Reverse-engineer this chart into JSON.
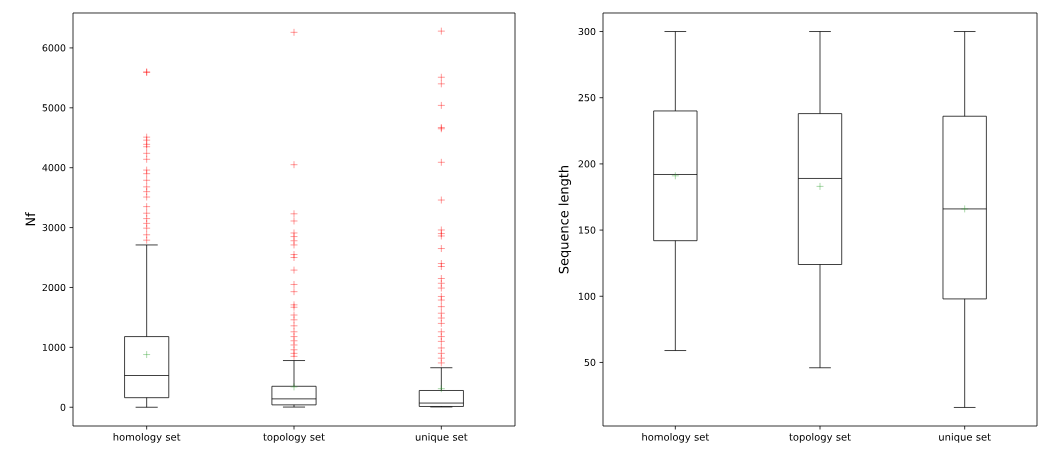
{
  "chart_data": [
    {
      "type": "box",
      "ylabel": "Nf",
      "categories": [
        "homology set",
        "topology set",
        "unique set"
      ],
      "ylim": [
        -313,
        6583
      ],
      "yticks": [
        0,
        1000,
        2000,
        3000,
        4000,
        5000,
        6000
      ],
      "marker": "cross",
      "boxes": [
        {
          "low": 0,
          "q1": 160,
          "median": 530,
          "q3": 1180,
          "high": 2710,
          "mean": 880,
          "outliers": [
            5600,
            5590,
            4510,
            4460,
            4390,
            4350,
            4240,
            4140,
            3960,
            3900,
            3790,
            3680,
            3600,
            3510,
            3350,
            3240,
            3150,
            3070,
            2990,
            2880,
            2790
          ]
        },
        {
          "low": 3,
          "q1": 40,
          "median": 140,
          "q3": 350,
          "high": 780,
          "mean": 340,
          "outliers": [
            6260,
            4050,
            3230,
            3110,
            2910,
            2850,
            2780,
            2710,
            2550,
            2500,
            2290,
            2050,
            1930,
            1710,
            1670,
            1540,
            1460,
            1360,
            1260,
            1180,
            1110,
            1040,
            960,
            900,
            850
          ]
        },
        {
          "low": 5,
          "q1": 13,
          "median": 70,
          "q3": 280,
          "high": 660,
          "mean": 310,
          "outliers": [
            6280,
            5510,
            5400,
            5040,
            4670,
            4650,
            4090,
            3460,
            2960,
            2900,
            2860,
            2650,
            2400,
            2350,
            2150,
            2070,
            1990,
            1850,
            1790,
            1680,
            1570,
            1490,
            1400,
            1260,
            1180,
            1100,
            990,
            900,
            820,
            740
          ]
        }
      ]
    },
    {
      "type": "box",
      "ylabel": "Sequence length",
      "categories": [
        "homology set",
        "topology set",
        "unique set"
      ],
      "ylim": [
        2,
        314
      ],
      "yticks": [
        50,
        100,
        150,
        200,
        250,
        300
      ],
      "marker": "cross",
      "boxes": [
        {
          "low": 59,
          "q1": 142,
          "median": 192,
          "q3": 240,
          "high": 300,
          "mean": 191
        },
        {
          "low": 46,
          "q1": 124,
          "median": 189,
          "q3": 238,
          "high": 300,
          "mean": 183
        },
        {
          "low": 16,
          "q1": 98,
          "median": 166,
          "q3": 236,
          "high": 300,
          "mean": 166
        }
      ]
    }
  ]
}
